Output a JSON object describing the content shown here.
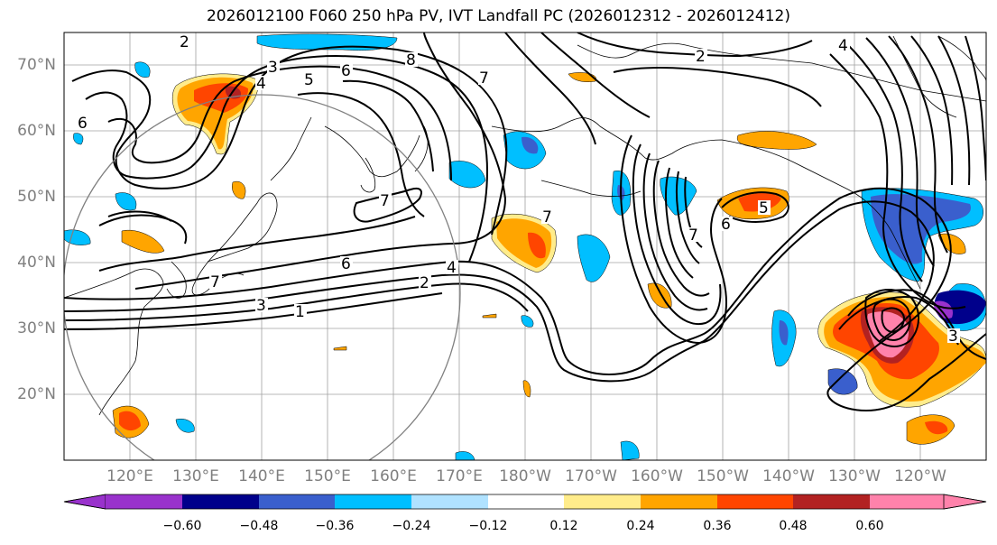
{
  "title": "2026012100 F060 250 hPa PV, IVT Landfall PC (2026012312 - 2026012412)",
  "lat_labels": [
    "70°N",
    "60°N",
    "50°N",
    "40°N",
    "30°N",
    "20°N"
  ],
  "lon_labels": [
    "120°E",
    "130°E",
    "140°E",
    "150°E",
    "160°E",
    "170°E",
    "180°W",
    "170°W",
    "160°W",
    "150°W",
    "140°W",
    "130°W",
    "120°W"
  ],
  "colorbar": {
    "ticks": [
      "−0.60",
      "−0.48",
      "−0.36",
      "−0.24",
      "−0.12",
      "0.12",
      "0.24",
      "0.36",
      "0.48",
      "0.60"
    ],
    "colors": [
      "#9932cc",
      "#00008b",
      "#3a5fcd",
      "#00bfff",
      "#b0e2ff",
      "#ffffff",
      "#ffec8b",
      "#ffa500",
      "#ff4500",
      "#b22222",
      "#ff82ab"
    ]
  },
  "contour_labels": [
    {
      "text": "2",
      "near": "Siberia"
    },
    {
      "text": "3",
      "near": "East Siberia"
    },
    {
      "text": "4",
      "near": "East Siberia"
    },
    {
      "text": "5",
      "near": "Okhotsk north"
    },
    {
      "text": "6",
      "near": "Okhotsk"
    },
    {
      "text": "8",
      "near": "Chukotka"
    },
    {
      "text": "7",
      "near": "Bering west"
    },
    {
      "text": "2",
      "near": "Alaska north"
    },
    {
      "text": "4",
      "near": "Yukon"
    },
    {
      "text": "6",
      "near": "Mongolia"
    },
    {
      "text": "7",
      "near": "Kamchatka south"
    },
    {
      "text": "7",
      "near": "Japan"
    },
    {
      "text": "3",
      "near": "south of Japan"
    },
    {
      "text": "1",
      "near": "Pacific west"
    },
    {
      "text": "6",
      "near": "Pacific 40N"
    },
    {
      "text": "4",
      "near": "Pacific 40N"
    },
    {
      "text": "2",
      "near": "Pacific 38N"
    },
    {
      "text": "7",
      "near": "dateline 45N"
    },
    {
      "text": "7",
      "near": "central Pacific trough"
    },
    {
      "text": "6",
      "near": "Gulf of Alaska"
    },
    {
      "text": "5",
      "near": "Gulf of Alaska"
    },
    {
      "text": "3",
      "near": "California"
    }
  ]
}
